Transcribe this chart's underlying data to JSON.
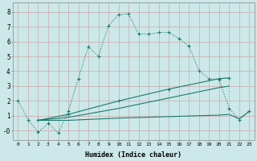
{
  "xlabel": "Humidex (Indice chaleur)",
  "bg_color": "#cce8e8",
  "grid_color": "#aacccc",
  "line_color": "#1a7a6e",
  "xlim": [
    -0.5,
    23.5
  ],
  "ylim": [
    -0.6,
    8.6
  ],
  "xticks": [
    0,
    1,
    2,
    3,
    4,
    5,
    6,
    7,
    8,
    9,
    10,
    11,
    12,
    13,
    14,
    15,
    16,
    17,
    18,
    19,
    20,
    21,
    22,
    23
  ],
  "yticks": [
    0,
    1,
    2,
    3,
    4,
    5,
    6,
    7,
    8
  ],
  "ytick_labels": [
    "-0",
    "1",
    "2",
    "3",
    "4",
    "5",
    "6",
    "7",
    "8"
  ],
  "curve1_x": [
    0,
    1,
    2,
    3,
    4,
    5,
    6,
    7,
    8,
    9,
    10,
    11,
    12,
    13,
    14,
    15,
    16,
    17,
    18,
    19,
    20,
    21,
    22,
    23
  ],
  "curve1_y": [
    2.0,
    0.75,
    -0.1,
    0.5,
    -0.15,
    1.3,
    3.5,
    5.65,
    5.0,
    7.05,
    7.8,
    7.85,
    6.5,
    6.5,
    6.6,
    6.6,
    6.2,
    5.7,
    4.05,
    3.5,
    3.45,
    1.5,
    0.75,
    1.3
  ],
  "curve2_x": [
    2,
    5,
    10,
    15,
    20,
    21
  ],
  "curve2_y": [
    0.7,
    1.1,
    2.0,
    2.8,
    3.5,
    3.55
  ],
  "curve3_x": [
    2,
    5,
    10,
    15,
    20,
    21
  ],
  "curve3_y": [
    0.7,
    0.9,
    1.5,
    2.2,
    2.9,
    3.0
  ],
  "curve4_x": [
    2,
    5,
    10,
    15,
    20,
    21,
    22,
    23
  ],
  "curve4_y": [
    0.7,
    0.7,
    0.85,
    0.95,
    1.05,
    1.1,
    0.8,
    1.3
  ]
}
